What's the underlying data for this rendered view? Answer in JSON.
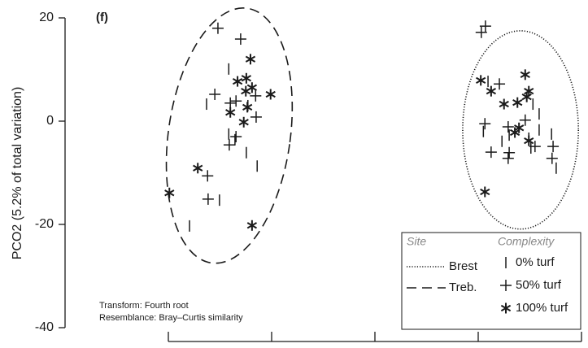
{
  "chart_data": {
    "type": "scatter",
    "panel_label": "(f)",
    "y_label": "PCO2 (5.2% of total variation)",
    "annotations": [
      "Transform: Fourth root",
      "Resemblance: Bray–Curtis similarity"
    ],
    "xlim": [
      -40,
      40
    ],
    "xticks": [
      -40,
      -20,
      0,
      20,
      40
    ],
    "ylim": [
      -40,
      20
    ],
    "yticks": [
      -40,
      -20,
      0,
      20
    ],
    "color": "#1a1a1a",
    "site_title": "Site",
    "complexity_title": "Complexity",
    "sites": [
      {
        "name": "Brest",
        "dash": "dotted",
        "center": [
          28.2,
          -1.7
        ],
        "radii": [
          11.2,
          19.2
        ],
        "angle": 0
      },
      {
        "name": "Treb.",
        "dash": "dashed",
        "center": [
          -28.2,
          -2.8
        ],
        "radii": [
          11.8,
          24.9
        ],
        "angle": 8
      }
    ],
    "series": [
      {
        "name": "0% turf",
        "marker": "bar",
        "x": [
          -28.3,
          -32.6,
          -24.6,
          -28.3,
          -27.1,
          -24.9,
          -22.8,
          -30.1,
          -35.9,
          21.9,
          30.6,
          31.8,
          31.8,
          21.0,
          26.0,
          34.2,
          24.6,
          29.8,
          35.1,
          30.2
        ],
        "values": [
          10.1,
          3.3,
          3.0,
          -2.5,
          -3.6,
          -6.1,
          -8.7,
          -15.3,
          -20.3,
          7.7,
          3.3,
          1.4,
          -1.7,
          -2.0,
          -2.7,
          -2.5,
          -3.9,
          -3.3,
          -9.1,
          -5.2
        ]
      },
      {
        "name": "50% turf",
        "marker": "plus",
        "x": [
          -30.4,
          -26.0,
          -31.0,
          -26.9,
          -23.1,
          -28.0,
          -23.0,
          -26.9,
          -28.2,
          -32.3,
          -32.4,
          21.4,
          20.6,
          24.1,
          21.3,
          25.8,
          29.1,
          22.5,
          26.0,
          34.5,
          31.0,
          25.8,
          34.3
        ],
        "values": [
          18.0,
          15.9,
          5.2,
          3.9,
          4.9,
          3.5,
          0.8,
          -3.0,
          -4.6,
          -15.1,
          -10.6,
          18.4,
          17.2,
          7.2,
          -0.5,
          -1.1,
          0.2,
          -6.0,
          -6.1,
          -4.9,
          -4.9,
          -7.2,
          -7.2
        ]
      },
      {
        "name": "100% turf",
        "marker": "star",
        "x": [
          -24.1,
          -26.6,
          -24.9,
          -23.8,
          -20.2,
          -28.0,
          -25.0,
          -24.7,
          -25.4,
          -34.3,
          -39.8,
          -23.8,
          20.5,
          22.5,
          29.4,
          25.0,
          27.6,
          29.1,
          29.8,
          27.9,
          27.1,
          29.8,
          21.3
        ],
        "values": [
          12.0,
          7.7,
          8.3,
          6.5,
          5.2,
          1.7,
          5.8,
          2.7,
          -0.2,
          -9.1,
          -13.9,
          -20.2,
          7.9,
          5.8,
          4.7,
          3.3,
          3.6,
          9.0,
          5.8,
          -1.3,
          -2.2,
          -3.8,
          -13.7
        ]
      }
    ]
  }
}
